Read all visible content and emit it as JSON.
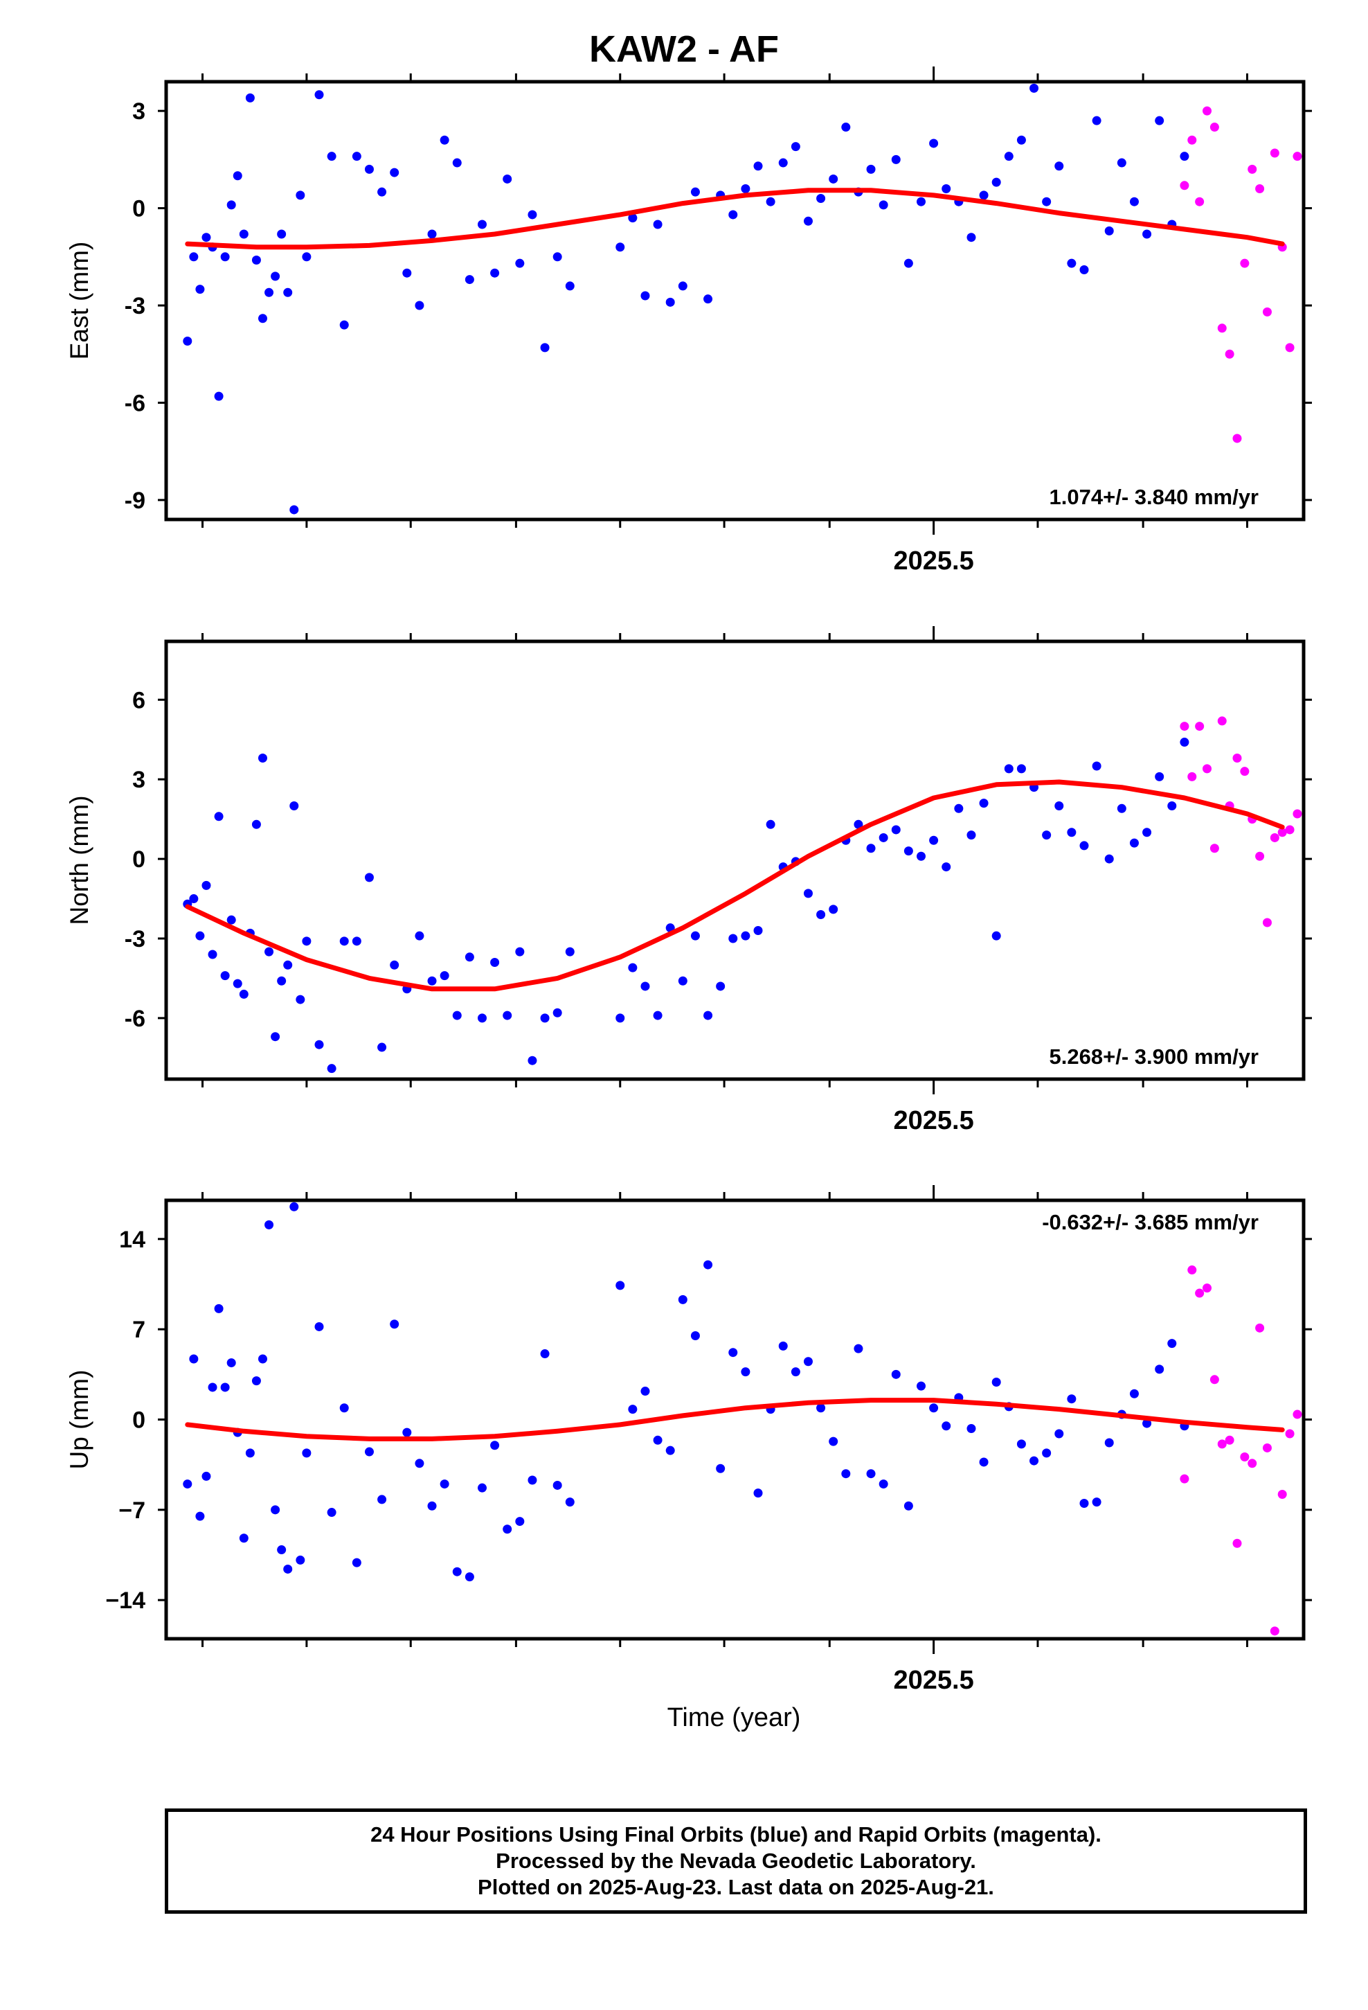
{
  "title": "KAW2 - AF",
  "colors": {
    "final": "#0000ff",
    "rapid": "#ff00ff",
    "fit": "#ff0000",
    "frame": "#000000"
  },
  "xaxis": {
    "label": "Time (year)",
    "tick_label": "2025.5"
  },
  "footer": {
    "line1": "24 Hour Positions Using Final Orbits (blue) and Rapid Orbits (magenta).",
    "line2": "Processed by the Nevada Geodetic Laboratory.",
    "line3": "Plotted on 2025-Aug-23. Last data on 2025-Aug-21."
  },
  "chart_data": [
    {
      "type": "scatter",
      "ylabel": "East (mm)",
      "ylim": [
        -9.6,
        3.9
      ],
      "xlim": [
        2024.888,
        2025.795
      ],
      "yticks": [
        3,
        0,
        -3,
        -6,
        -9
      ],
      "ytick_labels": [
        "3",
        "0",
        "-3",
        "-6",
        "-9"
      ],
      "rate": "1.074+/- 3.840 mm/yr",
      "rate_position": "bottom-right",
      "fit": {
        "x": [
          2024.905,
          2024.96,
          2025.0,
          2025.05,
          2025.1,
          2025.15,
          2025.2,
          2025.25,
          2025.3,
          2025.35,
          2025.4,
          2025.45,
          2025.5,
          2025.55,
          2025.6,
          2025.65,
          2025.7,
          2025.75,
          2025.778
        ],
        "y": [
          -1.1,
          -1.2,
          -1.2,
          -1.15,
          -1.0,
          -0.8,
          -0.5,
          -0.2,
          0.15,
          0.4,
          0.55,
          0.55,
          0.4,
          0.15,
          -0.15,
          -0.4,
          -0.65,
          -0.9,
          -1.1
        ]
      },
      "final": {
        "x": [
          2024.905,
          2024.91,
          2024.915,
          2024.92,
          2024.925,
          2024.93,
          2024.935,
          2024.94,
          2024.945,
          2024.95,
          2024.955,
          2024.96,
          2024.965,
          2024.97,
          2024.975,
          2024.98,
          2024.985,
          2024.99,
          2024.995,
          2025.0,
          2025.01,
          2025.02,
          2025.03,
          2025.04,
          2025.05,
          2025.06,
          2025.07,
          2025.08,
          2025.09,
          2025.1,
          2025.11,
          2025.12,
          2025.13,
          2025.14,
          2025.15,
          2025.16,
          2025.17,
          2025.18,
          2025.19,
          2025.2,
          2025.21,
          2025.25,
          2025.26,
          2025.27,
          2025.28,
          2025.29,
          2025.3,
          2025.31,
          2025.32,
          2025.33,
          2025.34,
          2025.35,
          2025.36,
          2025.37,
          2025.38,
          2025.39,
          2025.4,
          2025.41,
          2025.42,
          2025.43,
          2025.44,
          2025.45,
          2025.46,
          2025.47,
          2025.48,
          2025.49,
          2025.5,
          2025.51,
          2025.52,
          2025.53,
          2025.54,
          2025.55,
          2025.56,
          2025.57,
          2025.58,
          2025.59,
          2025.6,
          2025.61,
          2025.62,
          2025.63,
          2025.64,
          2025.65,
          2025.66,
          2025.67,
          2025.68,
          2025.69,
          2025.7
        ],
        "y": [
          -4.1,
          -1.5,
          -2.5,
          -0.9,
          -1.2,
          -5.8,
          -1.5,
          0.1,
          1.0,
          -0.8,
          3.4,
          -1.6,
          -3.4,
          -2.6,
          -2.1,
          -0.8,
          -2.6,
          -9.3,
          0.4,
          -1.5,
          3.5,
          1.6,
          -3.6,
          1.6,
          1.2,
          0.5,
          1.1,
          -2.0,
          -3.0,
          -0.8,
          2.1,
          1.4,
          -2.2,
          -0.5,
          -2.0,
          0.9,
          -1.7,
          -0.2,
          -4.3,
          -1.5,
          -2.4,
          -1.2,
          -0.3,
          -2.7,
          -0.5,
          -2.9,
          -2.4,
          0.5,
          -2.8,
          0.4,
          -0.2,
          0.6,
          1.3,
          0.2,
          1.4,
          1.9,
          -0.4,
          0.3,
          0.9,
          2.5,
          0.5,
          1.2,
          0.1,
          1.5,
          -1.7,
          0.2,
          2.0,
          0.6,
          0.2,
          -0.9,
          0.4,
          0.8,
          1.6,
          2.1,
          3.7,
          0.2,
          1.3,
          -1.7,
          -1.9,
          2.7,
          -0.7,
          1.4,
          0.2,
          -0.8,
          2.7,
          -0.5,
          1.6
        ]
      },
      "rapid": {
        "x": [
          2025.7,
          2025.706,
          2025.712,
          2025.718,
          2025.724,
          2025.73,
          2025.736,
          2025.742,
          2025.748,
          2025.754,
          2025.76,
          2025.766,
          2025.772,
          2025.778,
          2025.784,
          2025.79
        ],
        "y": [
          0.7,
          2.1,
          0.2,
          3.0,
          2.5,
          -3.7,
          -4.5,
          -7.1,
          -1.7,
          1.2,
          0.6,
          -3.2,
          1.7,
          -1.2,
          -4.3,
          1.6
        ]
      }
    },
    {
      "type": "scatter",
      "ylabel": "North (mm)",
      "ylim": [
        -8.3,
        8.2
      ],
      "xlim": [
        2024.888,
        2025.795
      ],
      "yticks": [
        6,
        3,
        0,
        -3,
        -6
      ],
      "ytick_labels": [
        "6",
        "3",
        "0",
        "-3",
        "-6"
      ],
      "rate": "5.268+/- 3.900 mm/yr",
      "rate_position": "bottom-right",
      "fit": {
        "x": [
          2024.905,
          2024.95,
          2025.0,
          2025.05,
          2025.1,
          2025.15,
          2025.2,
          2025.25,
          2025.3,
          2025.35,
          2025.4,
          2025.45,
          2025.5,
          2025.55,
          2025.6,
          2025.65,
          2025.7,
          2025.75,
          2025.778
        ],
        "y": [
          -1.8,
          -2.8,
          -3.8,
          -4.5,
          -4.9,
          -4.9,
          -4.5,
          -3.7,
          -2.6,
          -1.3,
          0.1,
          1.3,
          2.3,
          2.8,
          2.9,
          2.7,
          2.3,
          1.7,
          1.2
        ]
      },
      "final": {
        "x": [
          2024.905,
          2024.91,
          2024.915,
          2024.92,
          2024.925,
          2024.93,
          2024.935,
          2024.94,
          2024.945,
          2024.95,
          2024.955,
          2024.96,
          2024.965,
          2024.97,
          2024.975,
          2024.98,
          2024.985,
          2024.99,
          2024.995,
          2025.0,
          2025.01,
          2025.02,
          2025.03,
          2025.04,
          2025.05,
          2025.06,
          2025.07,
          2025.08,
          2025.09,
          2025.1,
          2025.11,
          2025.12,
          2025.13,
          2025.14,
          2025.15,
          2025.16,
          2025.17,
          2025.18,
          2025.19,
          2025.2,
          2025.21,
          2025.25,
          2025.26,
          2025.27,
          2025.28,
          2025.29,
          2025.3,
          2025.31,
          2025.32,
          2025.33,
          2025.34,
          2025.35,
          2025.36,
          2025.37,
          2025.38,
          2025.39,
          2025.4,
          2025.41,
          2025.42,
          2025.43,
          2025.44,
          2025.45,
          2025.46,
          2025.47,
          2025.48,
          2025.49,
          2025.5,
          2025.51,
          2025.52,
          2025.53,
          2025.54,
          2025.55,
          2025.56,
          2025.57,
          2025.58,
          2025.59,
          2025.6,
          2025.61,
          2025.62,
          2025.63,
          2025.64,
          2025.65,
          2025.66,
          2025.67,
          2025.68,
          2025.69,
          2025.7
        ],
        "y": [
          -1.7,
          -1.5,
          -2.9,
          -1.0,
          -3.6,
          1.6,
          -4.4,
          -2.3,
          -4.7,
          -5.1,
          -2.8,
          1.3,
          3.8,
          -3.5,
          -6.7,
          -4.6,
          -4.0,
          2.0,
          -5.3,
          -3.1,
          -7.0,
          -7.9,
          -3.1,
          -3.1,
          -0.7,
          -7.1,
          -4.0,
          -4.9,
          -2.9,
          -4.6,
          -4.4,
          -5.9,
          -3.7,
          -6.0,
          -3.9,
          -5.9,
          -3.5,
          -7.6,
          -6.0,
          -5.8,
          -3.5,
          -6.0,
          -4.1,
          -4.8,
          -5.9,
          -2.6,
          -4.6,
          -2.9,
          -5.9,
          -4.8,
          -3.0,
          -2.9,
          -2.7,
          1.3,
          -0.3,
          -0.1,
          -1.3,
          -2.1,
          -1.9,
          0.7,
          1.3,
          0.4,
          0.8,
          1.1,
          0.3,
          0.1,
          0.7,
          -0.3,
          1.9,
          0.9,
          2.1,
          -2.9,
          3.4,
          3.4,
          2.7,
          0.9,
          2.0,
          1.0,
          0.5,
          3.5,
          0.0,
          1.9,
          0.6,
          1.0,
          3.1,
          2.0,
          4.4
        ]
      },
      "rapid": {
        "x": [
          2025.7,
          2025.706,
          2025.712,
          2025.718,
          2025.724,
          2025.73,
          2025.736,
          2025.742,
          2025.748,
          2025.754,
          2025.76,
          2025.766,
          2025.772,
          2025.778,
          2025.784,
          2025.79
        ],
        "y": [
          5.0,
          3.1,
          5.0,
          3.4,
          0.4,
          5.2,
          2.0,
          3.8,
          3.3,
          1.5,
          0.1,
          -2.4,
          0.8,
          1.0,
          1.1,
          1.7
        ]
      }
    },
    {
      "type": "scatter",
      "ylabel": "Up (mm)",
      "ylim": [
        -17,
        17
      ],
      "xlim": [
        2024.888,
        2025.795
      ],
      "yticks": [
        14,
        7,
        0,
        -7,
        -14
      ],
      "ytick_labels": [
        "14",
        "7",
        "0",
        "−7",
        "−14"
      ],
      "rate": "-0.632+/- 3.685 mm/yr",
      "rate_position": "top-right",
      "fit": {
        "x": [
          2024.905,
          2024.95,
          2025.0,
          2025.05,
          2025.1,
          2025.15,
          2025.2,
          2025.25,
          2025.3,
          2025.35,
          2025.4,
          2025.45,
          2025.5,
          2025.55,
          2025.6,
          2025.65,
          2025.7,
          2025.75,
          2025.778
        ],
        "y": [
          -0.4,
          -0.9,
          -1.3,
          -1.5,
          -1.5,
          -1.3,
          -0.9,
          -0.4,
          0.3,
          0.9,
          1.3,
          1.5,
          1.5,
          1.2,
          0.8,
          0.3,
          -0.2,
          -0.6,
          -0.8
        ]
      },
      "final": {
        "x": [
          2024.905,
          2024.91,
          2024.915,
          2024.92,
          2024.925,
          2024.93,
          2024.935,
          2024.94,
          2024.945,
          2024.95,
          2024.955,
          2024.96,
          2024.965,
          2024.97,
          2024.975,
          2024.98,
          2024.985,
          2024.99,
          2024.995,
          2025.0,
          2025.01,
          2025.02,
          2025.03,
          2025.04,
          2025.05,
          2025.06,
          2025.07,
          2025.08,
          2025.09,
          2025.1,
          2025.11,
          2025.12,
          2025.13,
          2025.14,
          2025.15,
          2025.16,
          2025.17,
          2025.18,
          2025.19,
          2025.2,
          2025.21,
          2025.25,
          2025.26,
          2025.27,
          2025.28,
          2025.29,
          2025.3,
          2025.31,
          2025.32,
          2025.33,
          2025.34,
          2025.35,
          2025.36,
          2025.37,
          2025.38,
          2025.39,
          2025.4,
          2025.41,
          2025.42,
          2025.43,
          2025.44,
          2025.45,
          2025.46,
          2025.47,
          2025.48,
          2025.49,
          2025.5,
          2025.51,
          2025.52,
          2025.53,
          2025.54,
          2025.55,
          2025.56,
          2025.57,
          2025.58,
          2025.59,
          2025.6,
          2025.61,
          2025.62,
          2025.63,
          2025.64,
          2025.65,
          2025.66,
          2025.67,
          2025.68,
          2025.69,
          2025.7
        ],
        "y": [
          -5.0,
          4.7,
          -7.5,
          -4.4,
          2.5,
          8.6,
          2.5,
          4.4,
          -1.0,
          -9.2,
          -2.6,
          3.0,
          4.7,
          15.1,
          -7.0,
          -10.1,
          -11.6,
          16.5,
          -10.9,
          -2.6,
          7.2,
          -7.2,
          0.9,
          -11.1,
          -2.5,
          -6.2,
          7.4,
          -1.0,
          -3.4,
          -6.7,
          -5.0,
          -11.8,
          -12.2,
          -5.3,
          -2.0,
          -8.5,
          -7.9,
          -4.7,
          5.1,
          -5.1,
          -6.4,
          10.4,
          0.8,
          2.2,
          -1.6,
          -2.4,
          9.3,
          6.5,
          12.0,
          -3.8,
          5.2,
          3.7,
          -5.7,
          0.8,
          5.7,
          3.7,
          4.5,
          0.9,
          -1.7,
          -4.2,
          5.5,
          -4.2,
          -5.0,
          3.5,
          -6.7,
          2.6,
          0.9,
          -0.5,
          1.7,
          -0.7,
          -3.3,
          2.9,
          1.0,
          -1.9,
          -3.2,
          -2.6,
          -1.1,
          1.6,
          -6.5,
          -6.4,
          -1.8,
          0.4,
          2.0,
          -0.3,
          3.9,
          5.9,
          -0.5
        ]
      },
      "rapid": {
        "x": [
          2025.7,
          2025.706,
          2025.712,
          2025.718,
          2025.724,
          2025.73,
          2025.736,
          2025.742,
          2025.748,
          2025.754,
          2025.76,
          2025.766,
          2025.772,
          2025.778,
          2025.784,
          2025.79
        ],
        "y": [
          -4.6,
          11.6,
          9.8,
          10.2,
          3.1,
          -1.9,
          -1.6,
          -9.6,
          -2.9,
          -3.4,
          7.1,
          -2.2,
          -16.4,
          -5.8,
          -1.1,
          0.4
        ]
      }
    }
  ]
}
